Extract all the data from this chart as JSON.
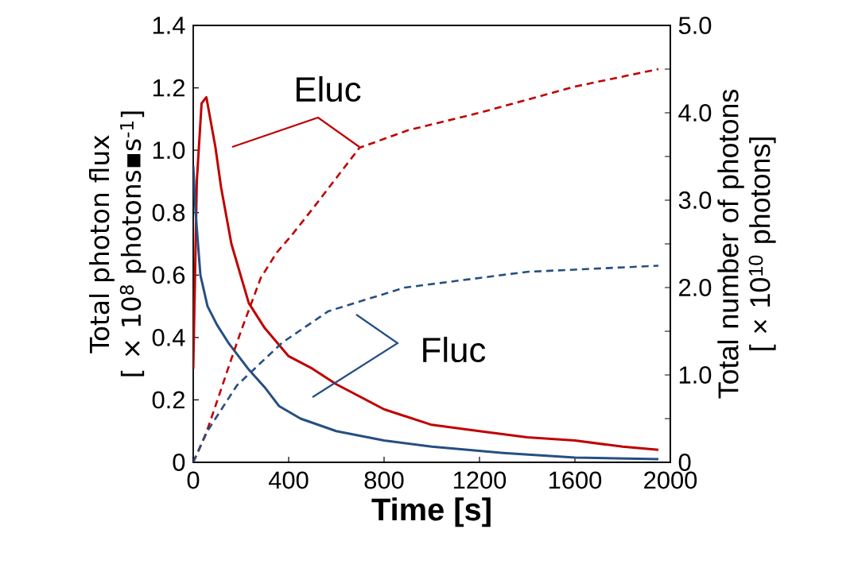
{
  "chart_data": {
    "type": "line",
    "xlabel": "**Time [s]**",
    "ylabel": "Total photon flux\n[ × 10$^{8}$ photons▪s$^{-1}$]",
    "y2label": "Total number of photons\n[ × 10$^{10}$ photons]",
    "xlim": [
      0,
      2000
    ],
    "xticks": [
      0,
      400,
      800,
      1200,
      1600,
      2000
    ],
    "ylim": [
      0,
      1.4
    ],
    "yticks": [
      0,
      {
        "value": 0.2,
        "label": "0.2"
      },
      {
        "value": 0.4,
        "label": "0.4"
      },
      {
        "value": 0.6,
        "label": "0.6"
      },
      {
        "value": 0.8,
        "label": "0.8"
      },
      {
        "value": 1.0,
        "label": "1.0"
      },
      {
        "value": 1.2,
        "label": "1.2"
      },
      {
        "value": 1.4,
        "label": "1.4"
      }
    ],
    "y2lim": [
      0,
      5
    ],
    "y2ticks": [
      0,
      {
        "value": 0.5,
        "label": null
      },
      {
        "value": 1,
        "label": "1.0"
      },
      {
        "value": 1.5,
        "label": null
      },
      {
        "value": 2,
        "label": "2.0"
      },
      {
        "value": 2.5,
        "label": null
      },
      {
        "value": 3,
        "label": "3.0"
      },
      {
        "value": 3.5,
        "label": null
      },
      {
        "value": 4,
        "label": "4.0"
      },
      {
        "value": 4.5,
        "label": null
      },
      {
        "value": 5,
        "label": "5.0"
      }
    ],
    "series": [
      {
        "name": "Eluc",
        "color": "#c00000",
        "line_style": "solid",
        "x": [
          0,
          15,
          35,
          55,
          93,
          117,
          160,
          233,
          300,
          400,
          500,
          600,
          800,
          1000,
          1200,
          1400,
          1600,
          1800,
          1950
        ],
        "values": [
          0.3,
          0.9,
          1.15,
          1.17,
          1.01,
          0.88,
          0.7,
          0.51,
          0.43,
          0.34,
          0.3,
          0.25,
          0.17,
          0.12,
          0.1,
          0.08,
          0.07,
          0.05,
          0.04
        ]
      },
      {
        "color": "#c00000",
        "line_style": "dashed",
        "axis": "y2",
        "x": [
          0,
          50,
          100,
          157,
          200,
          283,
          350,
          413,
          500,
          697,
          900,
          1200,
          1600,
          1950
        ],
        "values": [
          0,
          0.3,
          0.7,
          1.16,
          1.5,
          2.11,
          2.4,
          2.6,
          2.9,
          3.6,
          3.8,
          4.0,
          4.3,
          4.5
        ]
      },
      {
        "name": "Fluc",
        "color": "#264f82",
        "line_style": "solid",
        "x": [
          0,
          10,
          30,
          60,
          100,
          150,
          230,
          300,
          360,
          450,
          600,
          800,
          1000,
          1300,
          1600,
          1950
        ],
        "values": [
          0.95,
          0.8,
          0.6,
          0.5,
          0.44,
          0.38,
          0.3,
          0.24,
          0.18,
          0.14,
          0.1,
          0.07,
          0.05,
          0.03,
          0.015,
          0.01
        ]
      },
      {
        "color": "#264f82",
        "line_style": "dashed",
        "axis": "y2",
        "x": [
          0,
          53,
          183,
          373,
          567,
          887,
          1400,
          1950
        ],
        "values": [
          0,
          0.33,
          0.88,
          1.37,
          1.73,
          2.0,
          2.18,
          2.25
        ]
      }
    ]
  }
}
